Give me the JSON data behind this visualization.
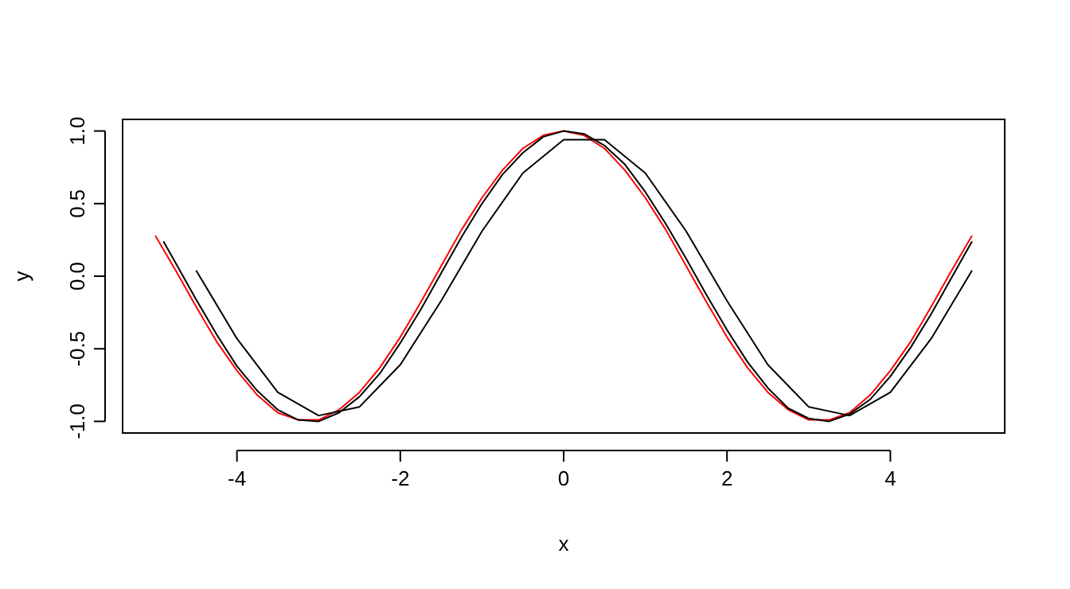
{
  "chart_data": {
    "type": "line",
    "xlabel": "x",
    "ylabel": "y",
    "xlim": [
      -5.4,
      5.4
    ],
    "ylim": [
      -1.08,
      1.08
    ],
    "xticks": [
      -4,
      -2,
      0,
      2,
      4
    ],
    "yticks": [
      {
        "value": -1,
        "label": "-1.0"
      },
      {
        "value": -0.5,
        "label": "-0.5"
      },
      {
        "value": 0,
        "label": "0.0"
      },
      {
        "value": 0.5,
        "label": "0.5"
      },
      {
        "value": 1,
        "label": "1.0"
      }
    ],
    "grid": false,
    "series": [
      {
        "color": "#ff0000",
        "x": [
          -5,
          -4.75,
          -4.5,
          -4.25,
          -4,
          -3.75,
          -3.5,
          -3.25,
          -3,
          -2.75,
          -2.5,
          -2.25,
          -2,
          -1.75,
          -1.5,
          -1.25,
          -1,
          -0.75,
          -0.5,
          -0.25,
          0,
          0.25,
          0.5,
          0.75,
          1,
          1.25,
          1.5,
          1.75,
          2,
          2.25,
          2.5,
          2.75,
          3,
          3.25,
          3.5,
          3.75,
          4,
          4.25,
          4.5,
          4.75,
          5
        ],
        "values": [
          0.28,
          0.04,
          -0.21,
          -0.45,
          -0.65,
          -0.82,
          -0.94,
          -0.99,
          -0.99,
          -0.92,
          -0.8,
          -0.63,
          -0.42,
          -0.18,
          0.07,
          0.32,
          0.54,
          0.73,
          0.88,
          0.97,
          1,
          0.97,
          0.88,
          0.73,
          0.54,
          0.32,
          0.07,
          -0.18,
          -0.42,
          -0.63,
          -0.8,
          -0.92,
          -0.99,
          -0.99,
          -0.94,
          -0.82,
          -0.65,
          -0.45,
          -0.21,
          0.04,
          0.28
        ]
      },
      {
        "color": "#000000",
        "x": [
          -4.9,
          -4.75,
          -4.5,
          -4.25,
          -4,
          -3.75,
          -3.5,
          -3.25,
          -3,
          -2.75,
          -2.5,
          -2.25,
          -2,
          -1.75,
          -1.5,
          -1.25,
          -1,
          -0.75,
          -0.5,
          -0.25,
          0,
          0.25,
          0.5,
          0.75,
          1,
          1.25,
          1.5,
          1.75,
          2,
          2.25,
          2.5,
          2.75,
          3,
          3.25,
          3.5,
          3.75,
          4,
          4.25,
          4.5,
          4.75,
          5
        ],
        "values": [
          0.24,
          0.09,
          -0.16,
          -0.4,
          -0.62,
          -0.79,
          -0.92,
          -0.99,
          -1,
          -0.94,
          -0.83,
          -0.67,
          -0.46,
          -0.23,
          0.02,
          0.27,
          0.5,
          0.7,
          0.85,
          0.96,
          1,
          0.98,
          0.9,
          0.77,
          0.58,
          0.36,
          0.12,
          -0.13,
          -0.37,
          -0.59,
          -0.77,
          -0.91,
          -0.98,
          -1,
          -0.95,
          -0.85,
          -0.69,
          -0.49,
          -0.26,
          -0.01,
          0.24
        ]
      },
      {
        "color": "#000000",
        "x": [
          -4.5,
          -4,
          -3.5,
          -3,
          -2.5,
          -2,
          -1.5,
          -1,
          -0.5,
          0,
          0.5,
          1,
          1.5,
          2,
          2.5,
          3,
          3.5,
          4,
          4.5,
          5
        ],
        "values": [
          0.04,
          -0.43,
          -0.8,
          -0.96,
          -0.9,
          -0.61,
          -0.17,
          0.31,
          0.71,
          0.94,
          0.94,
          0.71,
          0.31,
          -0.17,
          -0.61,
          -0.9,
          -0.96,
          -0.8,
          -0.43,
          0.04
        ]
      }
    ]
  }
}
